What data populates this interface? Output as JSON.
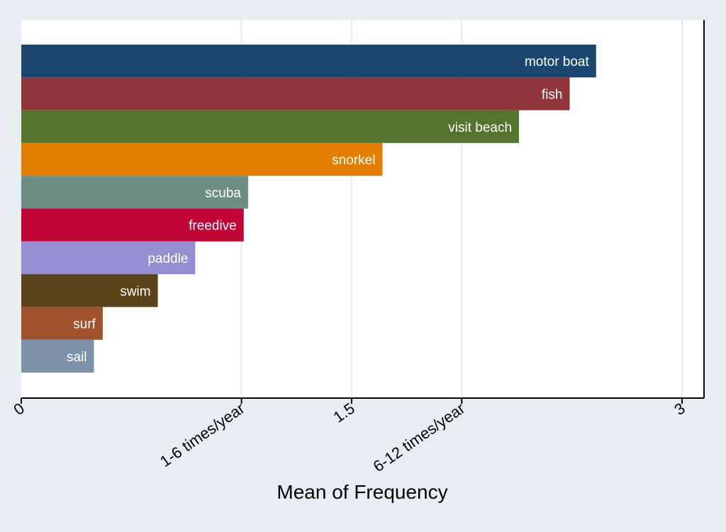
{
  "chart_data": {
    "type": "bar",
    "orientation": "horizontal",
    "categories": [
      "motor boat",
      "fish",
      "visit beach",
      "snorkel",
      "scuba",
      "freedive",
      "paddle",
      "swim",
      "surf",
      "sail"
    ],
    "values": [
      2.61,
      2.49,
      2.26,
      1.64,
      1.03,
      1.01,
      0.79,
      0.62,
      0.37,
      0.33
    ],
    "colors": [
      "#1a476f",
      "#90353b",
      "#55752f",
      "#e37e00",
      "#6e8e84",
      "#c10534",
      "#938dd2",
      "#5b4318",
      "#a0522d",
      "#7b92a8"
    ],
    "xlabel": "Mean of Frequency",
    "xlim": [
      0,
      3.1
    ],
    "ticks": [
      {
        "value": 0,
        "label": "0"
      },
      {
        "value": 1,
        "label": "1-6 times/year"
      },
      {
        "value": 1.5,
        "label": "1.5"
      },
      {
        "value": 2,
        "label": "6-12 times/year"
      },
      {
        "value": 3,
        "label": "3"
      }
    ],
    "grid": true,
    "legend": "none",
    "bar_labels": "inside-end",
    "colors_theme": {
      "outer_background": "#e8eef0",
      "plot_background": "#ffffff",
      "grid": "#e3ecee",
      "label_text": "#ffffff"
    }
  }
}
